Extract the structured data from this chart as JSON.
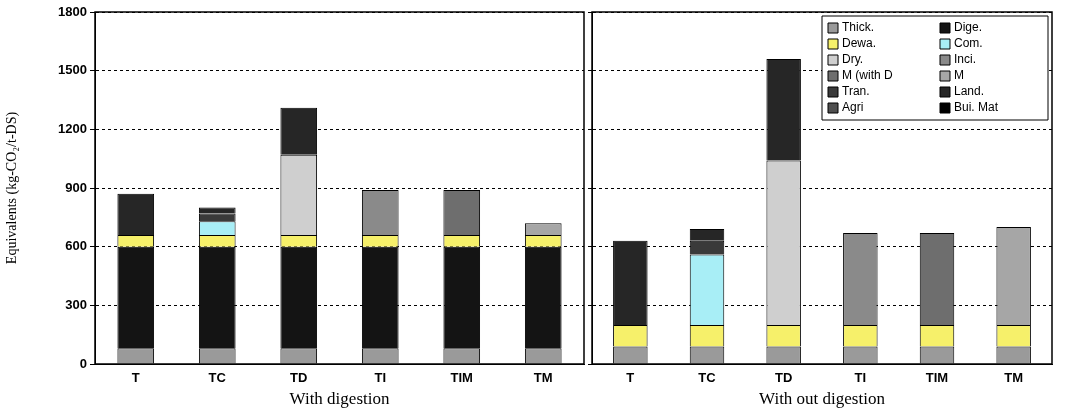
{
  "chart_data": [
    {
      "type": "bar",
      "stacked": true,
      "xlabel": "With digestion",
      "ylabel": "Equivalents (kg-CO₂/t-DS)",
      "categories": [
        "T",
        "TC",
        "TD",
        "TI",
        "TIM",
        "TM"
      ],
      "ylim": [
        0,
        1800
      ],
      "yticks": [
        0,
        300,
        600,
        900,
        1200,
        1500,
        1800
      ],
      "grid": "y",
      "legend": false,
      "series": [
        {
          "color": "#9a9a9a",
          "values": [
            80,
            80,
            80,
            80,
            80,
            80
          ]
        },
        {
          "color": "#141414",
          "values": [
            520,
            520,
            520,
            520,
            520,
            520
          ]
        },
        {
          "color": "#f6f06a",
          "values": [
            60,
            60,
            60,
            60,
            60,
            60
          ]
        },
        {
          "color": "#a8eef6",
          "values": [
            null,
            70,
            null,
            null,
            null,
            null
          ]
        },
        {
          "color": "#cfcfcf",
          "values": [
            null,
            null,
            410,
            null,
            null,
            null
          ]
        },
        {
          "color": "#8a8a8a",
          "values": [
            null,
            null,
            null,
            230,
            null,
            null
          ]
        },
        {
          "color": "#6e6e6e",
          "values": [
            null,
            null,
            null,
            null,
            230,
            null
          ]
        },
        {
          "color": "#a6a6a6",
          "values": [
            null,
            null,
            null,
            null,
            null,
            60
          ]
        },
        {
          "color": "#3a3a3a",
          "values": [
            null,
            40,
            null,
            null,
            null,
            null
          ]
        },
        {
          "color": "#262626",
          "values": [
            210,
            30,
            240,
            null,
            null,
            null
          ]
        }
      ]
    },
    {
      "type": "bar",
      "stacked": true,
      "xlabel": "With out digestion",
      "categories": [
        "T",
        "TC",
        "TD",
        "TI",
        "TIM",
        "TM"
      ],
      "ylim": [
        0,
        1800
      ],
      "yticks": [
        0,
        300,
        600,
        900,
        1200,
        1500,
        1800
      ],
      "grid": "y",
      "legend": "top right",
      "tick_labels": "x",
      "series": [
        {
          "name": "Thick.",
          "color": "#9a9a9a",
          "values": [
            90,
            90,
            90,
            90,
            90,
            90
          ]
        },
        {
          "name": "Dige.",
          "color": "#141414",
          "values": [
            null,
            null,
            null,
            null,
            null,
            null
          ]
        },
        {
          "name": "Dewa.",
          "color": "#f6f06a",
          "values": [
            110,
            110,
            110,
            110,
            110,
            110
          ]
        },
        {
          "name": "Com.",
          "color": "#a8eef6",
          "values": [
            null,
            360,
            null,
            null,
            null,
            null
          ]
        },
        {
          "name": "Dry.",
          "color": "#cfcfcf",
          "values": [
            null,
            null,
            840,
            null,
            null,
            null
          ]
        },
        {
          "name": "Inci.",
          "color": "#8a8a8a",
          "values": [
            null,
            null,
            null,
            470,
            null,
            null
          ]
        },
        {
          "name": "M (with D",
          "color": "#6e6e6e",
          "values": [
            null,
            null,
            null,
            null,
            470,
            null
          ]
        },
        {
          "name": "M",
          "color": "#a6a6a6",
          "values": [
            null,
            null,
            null,
            null,
            null,
            500
          ]
        },
        {
          "name": "Tran.",
          "color": "#3a3a3a",
          "values": [
            null,
            70,
            null,
            null,
            null,
            null
          ]
        },
        {
          "name": "Land.",
          "color": "#262626",
          "values": [
            430,
            60,
            520,
            null,
            null,
            null
          ]
        },
        {
          "name": "Agri",
          "color": "#505050",
          "values": [
            null,
            null,
            null,
            null,
            null,
            null
          ]
        },
        {
          "name": "Bui. Mat",
          "color": "#000000",
          "values": [
            null,
            null,
            null,
            null,
            null,
            null
          ]
        }
      ]
    }
  ]
}
